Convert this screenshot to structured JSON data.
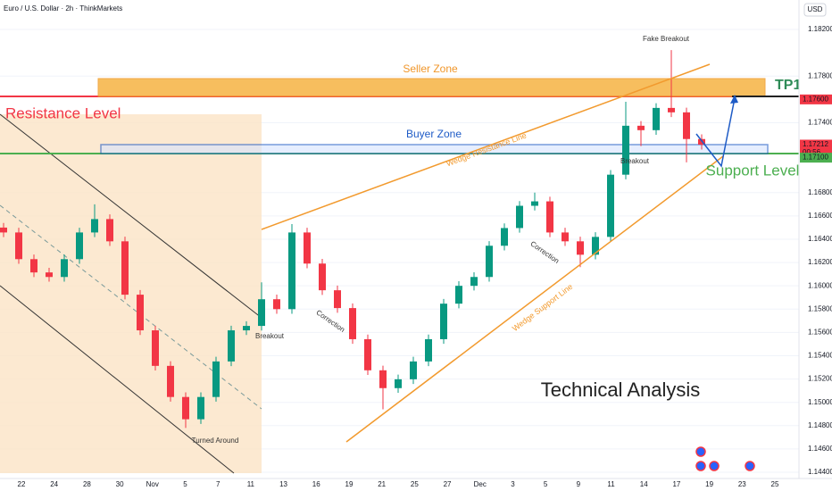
{
  "chart_data": {
    "type": "candlestick",
    "title": "Euro / U.S. Dollar · 2h · ThinkMarkets",
    "currency": "USD",
    "up_color": "#089981",
    "down_color": "#f23645",
    "open": [
      1.165,
      1.16458,
      1.16229,
      1.16115,
      1.16076,
      1.16229,
      1.16458,
      1.16573,
      1.16382,
      1.15924,
      1.15618,
      1.15313,
      1.15046,
      1.14855,
      1.15046,
      1.15351,
      1.15618,
      1.15656,
      1.15885,
      1.158,
      1.16458,
      1.16191,
      1.15962,
      1.15809,
      1.15542,
      1.15275,
      1.15122,
      1.15198,
      1.15351,
      1.15542,
      1.15847,
      1.16,
      1.16076,
      1.16344,
      1.16496,
      1.16687,
      1.16725,
      1.16458,
      1.16382,
      1.16267,
      1.1642,
      1.16954,
      1.17374,
      1.17336,
      1.17527,
      1.17489,
      1.1726
    ],
    "high": [
      1.1654,
      1.16498,
      1.16269,
      1.16155,
      1.16269,
      1.16498,
      1.167,
      1.16613,
      1.16422,
      1.15964,
      1.15658,
      1.15353,
      1.15086,
      1.15086,
      1.15391,
      1.15658,
      1.15696,
      1.1603,
      1.15925,
      1.1653,
      1.16498,
      1.16231,
      1.16002,
      1.15849,
      1.15582,
      1.15315,
      1.15238,
      1.15391,
      1.15582,
      1.15887,
      1.1604,
      1.16116,
      1.16384,
      1.16536,
      1.16727,
      1.168,
      1.16765,
      1.16498,
      1.16422,
      1.1646,
      1.16994,
      1.1758,
      1.17414,
      1.17567,
      1.18023,
      1.17529,
      1.173
    ],
    "low": [
      1.16418,
      1.16189,
      1.16075,
      1.16036,
      1.16036,
      1.16189,
      1.16418,
      1.16342,
      1.15884,
      1.15578,
      1.15273,
      1.15006,
      1.1478,
      1.14815,
      1.15006,
      1.15311,
      1.15578,
      1.15616,
      1.1576,
      1.1576,
      1.16151,
      1.15922,
      1.15769,
      1.15502,
      1.15235,
      1.1494,
      1.15082,
      1.15158,
      1.15311,
      1.15502,
      1.15807,
      1.1596,
      1.16036,
      1.16304,
      1.16456,
      1.16647,
      1.16418,
      1.16342,
      1.1616,
      1.16227,
      1.1638,
      1.16914,
      1.172,
      1.17296,
      1.17449,
      1.1706,
      1.1717
    ],
    "close": [
      1.16458,
      1.16229,
      1.16115,
      1.16076,
      1.16229,
      1.16458,
      1.16573,
      1.16382,
      1.15924,
      1.15618,
      1.15313,
      1.15046,
      1.14855,
      1.15046,
      1.15351,
      1.15618,
      1.15656,
      1.15885,
      1.158,
      1.16458,
      1.16191,
      1.15962,
      1.15809,
      1.15542,
      1.15275,
      1.15122,
      1.15198,
      1.15351,
      1.15542,
      1.15847,
      1.16,
      1.16076,
      1.16344,
      1.16496,
      1.16687,
      1.16725,
      1.16458,
      1.16382,
      1.16267,
      1.1642,
      1.16954,
      1.17374,
      1.17336,
      1.17527,
      1.17489,
      1.1726,
      1.17212
    ],
    "ylim": [
      1.144,
      1.183
    ],
    "yticks": [
      {
        "value": 1.182,
        "label": "1.18200"
      },
      {
        "value": 1.178,
        "label": "1.17800"
      },
      {
        "value": 1.174,
        "label": "1.17400"
      },
      {
        "value": 1.168,
        "label": "1.16800"
      },
      {
        "value": 1.166,
        "label": "1.16600"
      },
      {
        "value": 1.164,
        "label": "1.16400"
      },
      {
        "value": 1.162,
        "label": "1.16200"
      },
      {
        "value": 1.16,
        "label": "1.16000"
      },
      {
        "value": 1.158,
        "label": "1.15800"
      },
      {
        "value": 1.156,
        "label": "1.15600"
      },
      {
        "value": 1.154,
        "label": "1.15400"
      },
      {
        "value": 1.152,
        "label": "1.15200"
      },
      {
        "value": 1.15,
        "label": "1.15000"
      },
      {
        "value": 1.148,
        "label": "1.14800"
      },
      {
        "value": 1.146,
        "label": "1.14600"
      },
      {
        "value": 1.144,
        "label": "1.14400"
      }
    ],
    "price_labels": [
      {
        "value": 1.176,
        "label": "1.17600",
        "color": "#f23645"
      },
      {
        "value": 1.17212,
        "label": "1.17212",
        "color": "#f23645",
        "countdown": "00:56"
      },
      {
        "value": 1.171,
        "label": "1.17100",
        "color": "#4caf50"
      }
    ],
    "x_axis_labels": [
      "22",
      "24",
      "28",
      "30",
      "Nov",
      "5",
      "7",
      "11",
      "13",
      "16",
      "19",
      "21",
      "25",
      "27",
      "Dec",
      "3",
      "5",
      "9",
      "11",
      "14",
      "17",
      "19",
      "23",
      "25"
    ],
    "annotations": [
      "Seller Zone",
      "Resistance Level",
      "Buyer Zone",
      "Wedge Resistance Line",
      "Fake Breakout",
      "TP1",
      "Breakout",
      "Support Level",
      "Correction",
      "Correction",
      "Wedge Support Line",
      "Breakout",
      "Turned Around",
      "Technical Analysis"
    ]
  }
}
